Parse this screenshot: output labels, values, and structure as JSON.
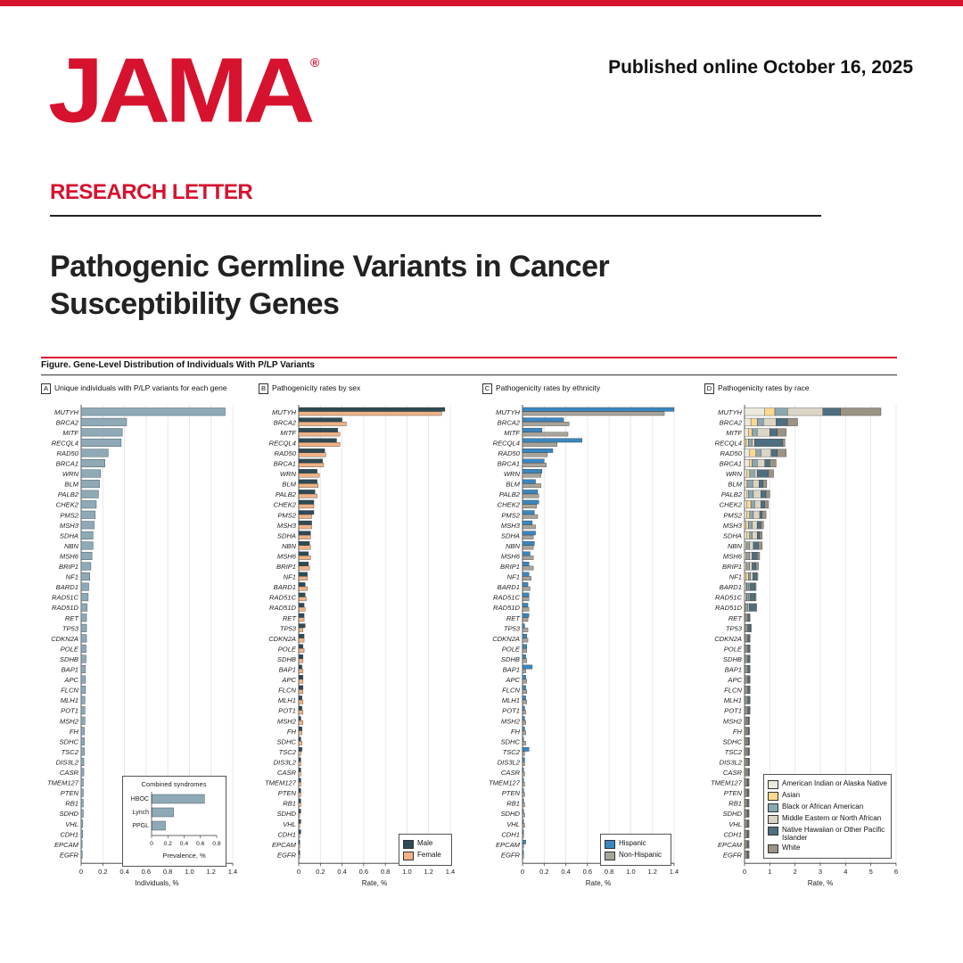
{
  "header": {
    "journal": "JAMA",
    "registered_mark": "®",
    "published": "Published online October 16, 2025",
    "section": "RESEARCH LETTER",
    "title_line1": "Pathogenic Germline Variants in Cancer",
    "title_line2": "Susceptibility Genes",
    "figure_title": "Figure. Gene-Level Distribution of Individuals With P/LP Variants"
  },
  "colors": {
    "brand": "#d6122f",
    "bar_a": "#8fa9b6",
    "male": "#2f4a55",
    "female": "#efb287",
    "hispanic": "#3b86bf",
    "non_hispanic": "#a8a49b",
    "race": [
      "#eceadf",
      "#fcd98f",
      "#8aa7b4",
      "#dcd4c4",
      "#4f6f80",
      "#9b9384"
    ]
  },
  "chart_data": [
    {
      "panel": "A",
      "title": "Unique individuals with P/LP variants for each gene",
      "type": "bar",
      "orientation": "horizontal",
      "categories": [
        "MUTYH",
        "BRCA2",
        "MITF",
        "RECQL4",
        "RAD50",
        "BRCA1",
        "WRN",
        "BLM",
        "PALB2",
        "CHEK2",
        "PMS2",
        "MSH3",
        "SDHA",
        "NBN",
        "MSH6",
        "BRIP1",
        "NF1",
        "BARD1",
        "RAD51C",
        "RAD51D",
        "RET",
        "TP53",
        "CDKN2A",
        "POLE",
        "SDHB",
        "BAP1",
        "APC",
        "FLCN",
        "MLH1",
        "POT1",
        "MSH2",
        "FH",
        "SDHC",
        "TSC2",
        "DIS3L2",
        "CASR",
        "TMEM127",
        "PTEN",
        "RB1",
        "SDHD",
        "VHL",
        "CDH1",
        "EPCAM",
        "EGFR"
      ],
      "values": [
        1.33,
        0.42,
        0.38,
        0.37,
        0.25,
        0.22,
        0.18,
        0.17,
        0.16,
        0.14,
        0.13,
        0.12,
        0.11,
        0.11,
        0.1,
        0.09,
        0.08,
        0.07,
        0.065,
        0.055,
        0.05,
        0.05,
        0.05,
        0.045,
        0.045,
        0.04,
        0.04,
        0.04,
        0.035,
        0.035,
        0.035,
        0.03,
        0.03,
        0.03,
        0.025,
        0.025,
        0.02,
        0.02,
        0.02,
        0.02,
        0.015,
        0.015,
        0.01,
        0.01
      ],
      "xlabel": "Individuals, %",
      "xlim": [
        0,
        1.4
      ],
      "xticks": [
        "0",
        "0.2",
        "0.4",
        "0.6",
        "0.8",
        "1.0",
        "1.2",
        "1.4"
      ],
      "inset": {
        "title": "Combined syndromes",
        "categories": [
          "HBOC",
          "Lynch",
          "PPGL"
        ],
        "values": [
          0.65,
          0.27,
          0.17
        ],
        "xlim": [
          0,
          0.8
        ],
        "xticks": [
          "0",
          "0.2",
          "0.4",
          "0.6",
          "0.8"
        ],
        "xlabel": "Prevalence, %"
      }
    },
    {
      "panel": "B",
      "title": "Pathogenicity rates by sex",
      "type": "bar",
      "orientation": "horizontal",
      "series": [
        {
          "name": "Male",
          "values": [
            1.35,
            0.4,
            0.36,
            0.35,
            0.24,
            0.22,
            0.17,
            0.17,
            0.15,
            0.14,
            0.14,
            0.12,
            0.11,
            0.1,
            0.09,
            0.09,
            0.08,
            0.06,
            0.06,
            0.05,
            0.05,
            0.06,
            0.05,
            0.04,
            0.04,
            0.03,
            0.04,
            0.04,
            0.03,
            0.03,
            0.02,
            0.03,
            0.02,
            0.03,
            0.02,
            0.02,
            0.02,
            0.02,
            0.02,
            0.02,
            0.02,
            0.02,
            0.01,
            0.01
          ]
        },
        {
          "name": "Female",
          "values": [
            1.32,
            0.44,
            0.38,
            0.38,
            0.25,
            0.23,
            0.19,
            0.18,
            0.17,
            0.14,
            0.12,
            0.12,
            0.11,
            0.11,
            0.11,
            0.1,
            0.08,
            0.08,
            0.07,
            0.06,
            0.05,
            0.04,
            0.05,
            0.05,
            0.04,
            0.04,
            0.04,
            0.04,
            0.04,
            0.04,
            0.04,
            0.03,
            0.03,
            0.02,
            0.02,
            0.02,
            0.02,
            0.02,
            0.02,
            0.01,
            0.01,
            0.01,
            0.01,
            0.01
          ]
        }
      ],
      "xlabel": "Rate, %",
      "xlim": [
        0,
        1.4
      ],
      "xticks": [
        "0",
        "0.2",
        "0.4",
        "0.6",
        "0.8",
        "1.0",
        "1.2",
        "1.4"
      ],
      "legend": "bottom-right"
    },
    {
      "panel": "C",
      "title": "Pathogenicity rates by ethnicity",
      "type": "bar",
      "orientation": "horizontal",
      "series": [
        {
          "name": "Hispanic",
          "values": [
            1.4,
            0.38,
            0.18,
            0.55,
            0.28,
            0.2,
            0.18,
            0.12,
            0.14,
            0.15,
            0.11,
            0.09,
            0.12,
            0.11,
            0.07,
            0.06,
            0.06,
            0.05,
            0.06,
            0.05,
            0.06,
            0.02,
            0.04,
            0.04,
            0.03,
            0.09,
            0.03,
            0.03,
            0.03,
            0.02,
            0.02,
            0.02,
            0.01,
            0.06,
            0.02,
            0.01,
            0.01,
            0.01,
            0.01,
            0.01,
            0.01,
            0.01,
            0.03,
            0.01
          ]
        },
        {
          "name": "Non-Hispanic",
          "values": [
            1.31,
            0.43,
            0.42,
            0.32,
            0.23,
            0.22,
            0.17,
            0.17,
            0.15,
            0.13,
            0.14,
            0.12,
            0.1,
            0.1,
            0.1,
            0.1,
            0.08,
            0.07,
            0.06,
            0.06,
            0.05,
            0.05,
            0.05,
            0.04,
            0.04,
            0.03,
            0.04,
            0.04,
            0.04,
            0.03,
            0.03,
            0.03,
            0.03,
            0.02,
            0.02,
            0.02,
            0.02,
            0.02,
            0.02,
            0.02,
            0.02,
            0.01,
            0.01,
            0.01
          ]
        }
      ],
      "xlabel": "Rate, %",
      "xlim": [
        0,
        1.4
      ],
      "xticks": [
        "0",
        "0.2",
        "0.4",
        "0.6",
        "0.8",
        "1.0",
        "1.2",
        "1.4"
      ],
      "legend": "bottom-right"
    },
    {
      "panel": "D",
      "title": "Pathogenicity rates by race",
      "type": "bar",
      "orientation": "horizontal",
      "stacked": true,
      "series": [
        {
          "name": "American Indian or Alaska Native",
          "values": [
            0.8,
            0.25,
            0.15,
            0.05,
            0.2,
            0.2,
            0.1,
            0.08,
            0.1,
            0.1,
            0.1,
            0.05,
            0.1,
            0.05,
            0.05,
            0.05,
            0.05,
            0.05,
            0.05,
            0.03,
            0.03,
            0.03,
            0.03,
            0.03,
            0.03,
            0.03,
            0.03,
            0.03,
            0.03,
            0.03,
            0.03,
            0.03,
            0.03,
            0.03,
            0.03,
            0.03,
            0.03,
            0.03,
            0.03,
            0.03,
            0.03,
            0.03,
            0.03,
            0.03
          ]
        },
        {
          "name": "Asian",
          "values": [
            0.4,
            0.25,
            0.15,
            0.1,
            0.25,
            0.1,
            0.1,
            0.05,
            0.05,
            0.15,
            0.1,
            0.1,
            0.1,
            0.05,
            0.05,
            0.05,
            0.1,
            0.03,
            0.03,
            0.03,
            0.03,
            0.03,
            0.03,
            0.03,
            0.03,
            0.03,
            0.03,
            0.03,
            0.03,
            0.03,
            0.03,
            0.03,
            0.03,
            0.03,
            0.03,
            0.03,
            0.03,
            0.03,
            0.03,
            0.03,
            0.03,
            0.03,
            0.03,
            0.03
          ]
        },
        {
          "name": "Black or African American",
          "values": [
            0.5,
            0.25,
            0.2,
            0.15,
            0.2,
            0.2,
            0.2,
            0.2,
            0.2,
            0.15,
            0.15,
            0.15,
            0.1,
            0.1,
            0.1,
            0.1,
            0.08,
            0.08,
            0.08,
            0.08,
            0.05,
            0.05,
            0.05,
            0.05,
            0.05,
            0.05,
            0.05,
            0.05,
            0.05,
            0.05,
            0.04,
            0.04,
            0.04,
            0.04,
            0.04,
            0.04,
            0.03,
            0.03,
            0.03,
            0.03,
            0.03,
            0.03,
            0.03,
            0.03
          ]
        },
        {
          "name": "Middle Eastern or North African",
          "values": [
            1.4,
            0.5,
            0.5,
            0.1,
            0.4,
            0.3,
            0.1,
            0.25,
            0.3,
            0.25,
            0.25,
            0.2,
            0.2,
            0.15,
            0.1,
            0.1,
            0.1,
            0.05,
            0.05,
            0.05,
            0.03,
            0.03,
            0.03,
            0.03,
            0.03,
            0.03,
            0.03,
            0.03,
            0.03,
            0.03,
            0.03,
            0.03,
            0.03,
            0.03,
            0.03,
            0.03,
            0.03,
            0.03,
            0.03,
            0.03,
            0.03,
            0.03,
            0.03,
            0.03
          ]
        },
        {
          "name": "Native Hawaiian or Other Pacific Islander",
          "values": [
            0.7,
            0.45,
            0.3,
            1.1,
            0.25,
            0.2,
            0.45,
            0.15,
            0.2,
            0.15,
            0.1,
            0.15,
            0.1,
            0.2,
            0.2,
            0.15,
            0.15,
            0.2,
            0.2,
            0.25,
            0.05,
            0.1,
            0.05,
            0.05,
            0.05,
            0.05,
            0.05,
            0.05,
            0.05,
            0.05,
            0.04,
            0.04,
            0.04,
            0.04,
            0.04,
            0.04,
            0.03,
            0.03,
            0.03,
            0.03,
            0.03,
            0.03,
            0.03,
            0.03
          ]
        },
        {
          "name": "White",
          "values": [
            1.6,
            0.4,
            0.35,
            0.1,
            0.35,
            0.25,
            0.2,
            0.15,
            0.15,
            0.15,
            0.15,
            0.1,
            0.1,
            0.15,
            0.1,
            0.1,
            0.05,
            0.05,
            0.05,
            0.05,
            0.03,
            0.03,
            0.03,
            0.03,
            0.03,
            0.03,
            0.03,
            0.03,
            0.03,
            0.03,
            0.03,
            0.03,
            0.03,
            0.03,
            0.03,
            0.03,
            0.03,
            0.03,
            0.03,
            0.03,
            0.03,
            0.03,
            0.03,
            0.03
          ]
        }
      ],
      "xlabel": "Rate, %",
      "xlim": [
        0,
        6
      ],
      "xticks": [
        "0",
        "1",
        "2",
        "3",
        "4",
        "5",
        "6"
      ],
      "legend": "bottom-right"
    }
  ]
}
